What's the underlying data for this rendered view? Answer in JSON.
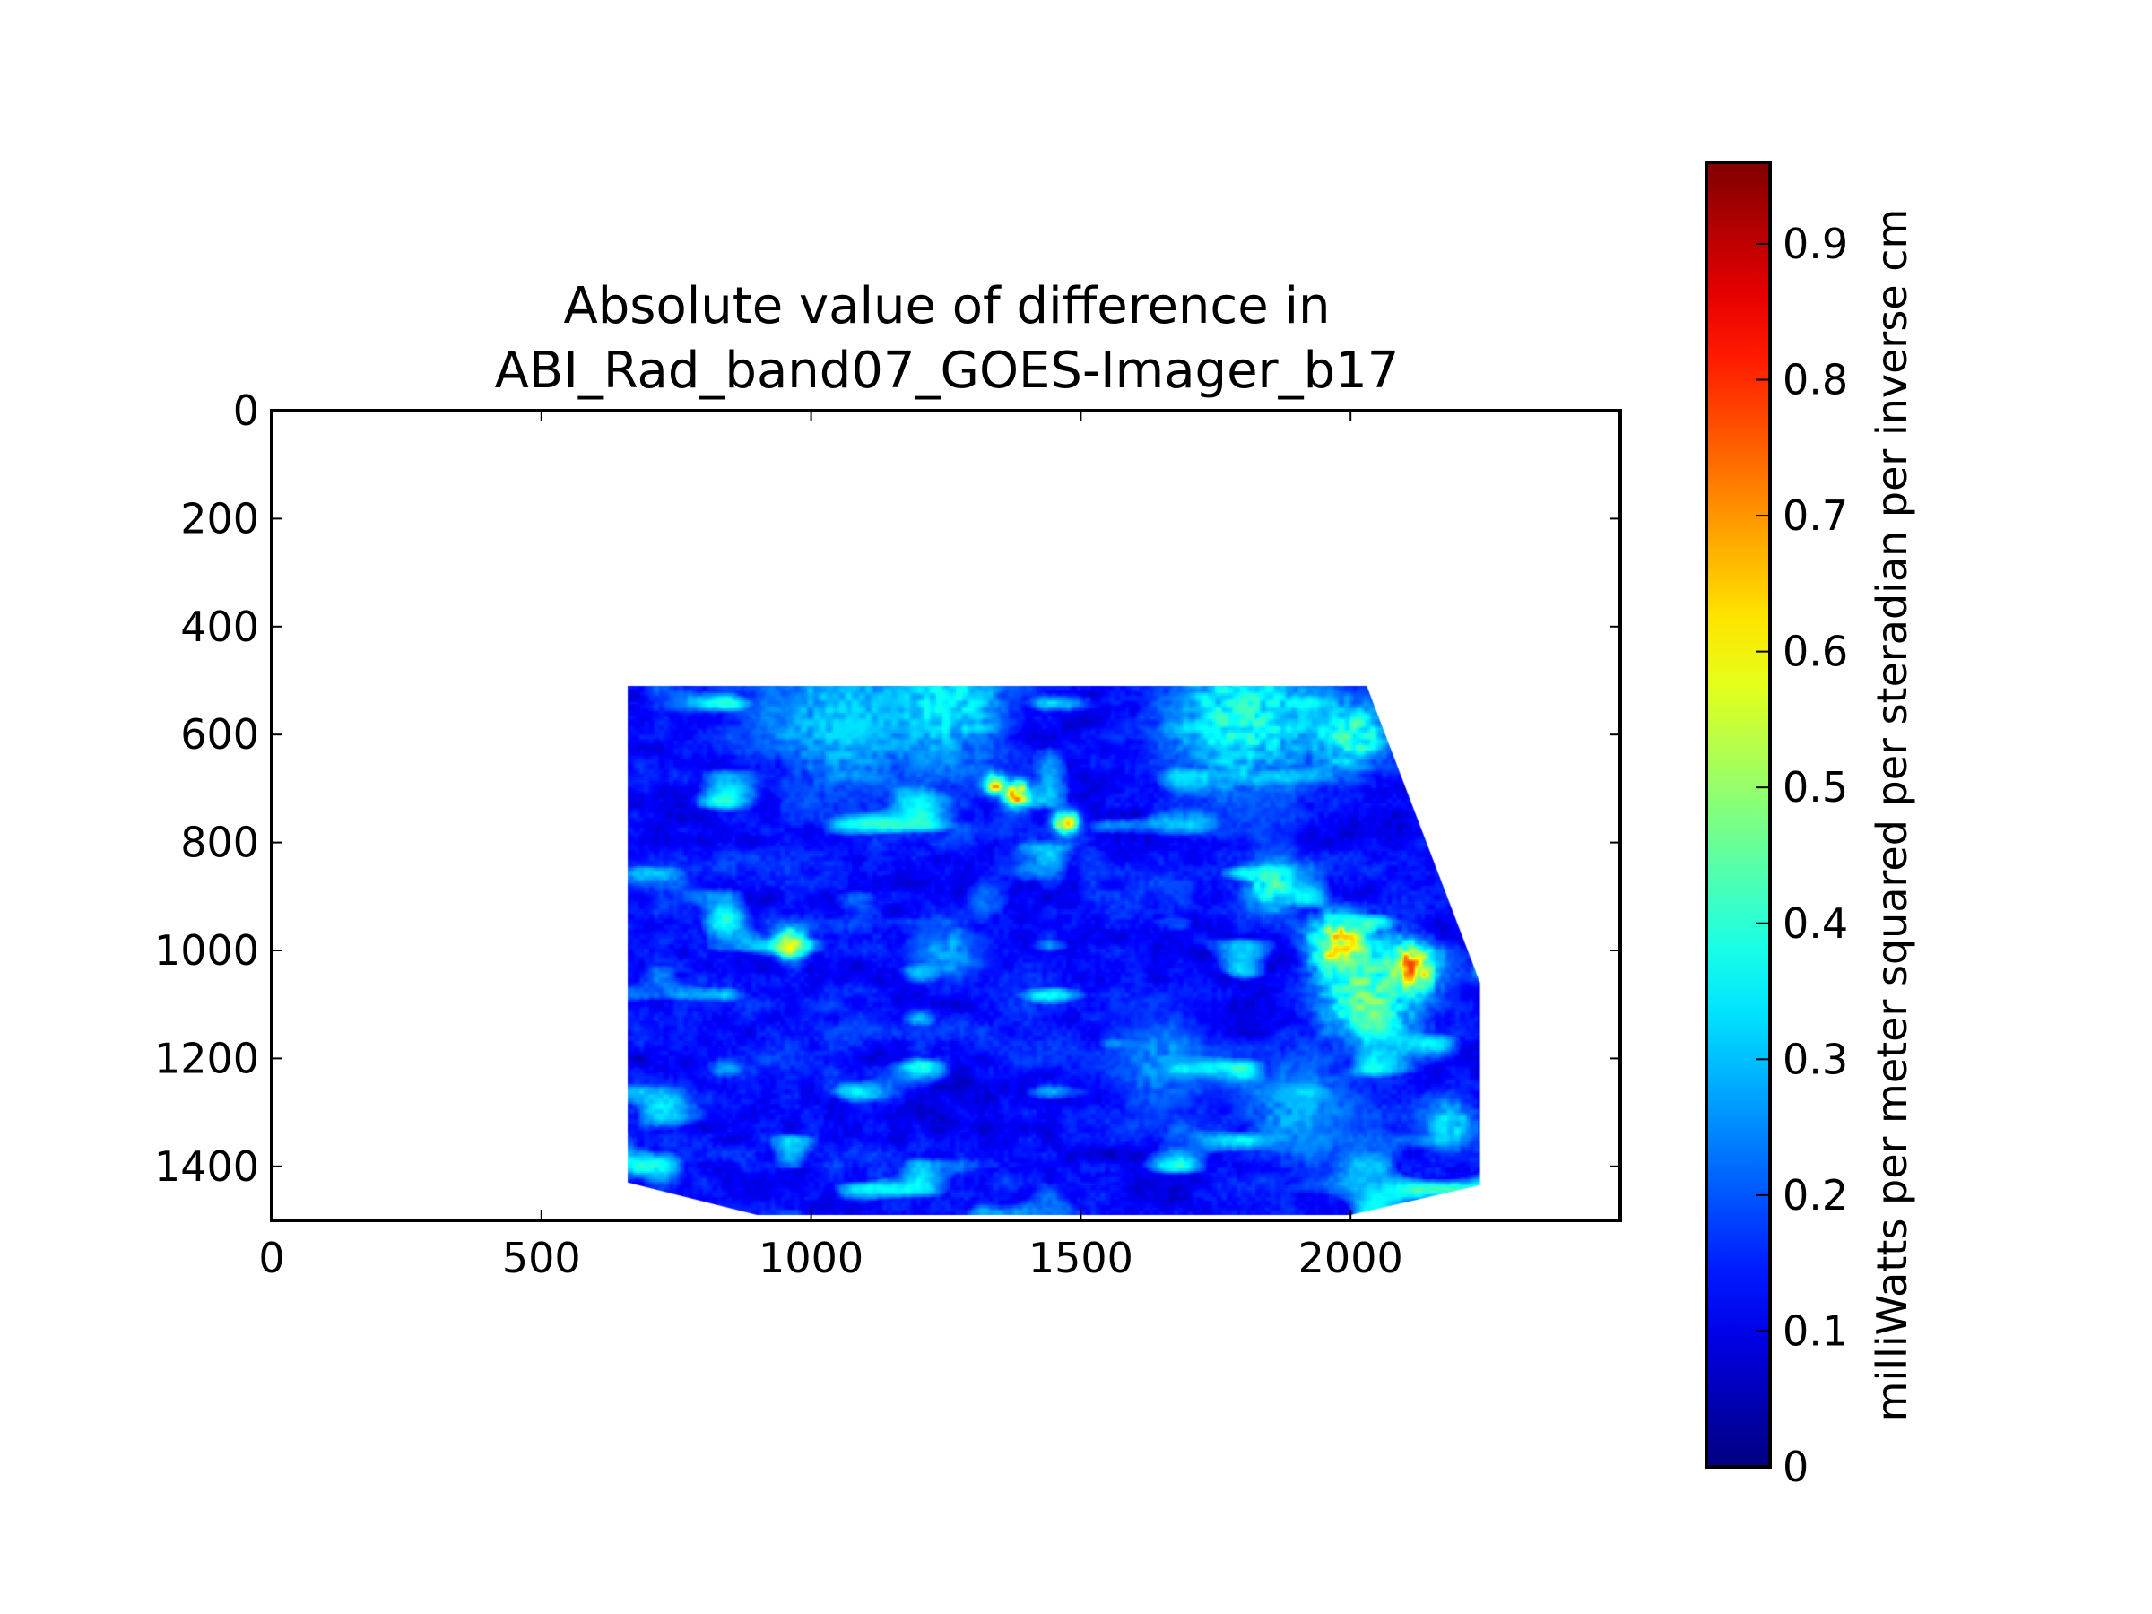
{
  "chart_data": {
    "type": "heatmap",
    "title_lines": [
      "Absolute value of difference in",
      "ABI_Rad_band07_GOES-Imager_b17"
    ],
    "xlabel": "",
    "ylabel": "",
    "xlim": [
      0,
      2500
    ],
    "ylim": [
      1500,
      0
    ],
    "xticks": [
      0,
      500,
      1000,
      1500,
      2000
    ],
    "yticks": [
      0,
      200,
      400,
      600,
      800,
      1000,
      1200,
      1400
    ],
    "grid": false,
    "colormap": "jet",
    "colorbar": {
      "vmin": 0,
      "vmax": 0.96,
      "ticks": [
        "0",
        "0.1",
        "0.2",
        "0.3",
        "0.4",
        "0.5",
        "0.6",
        "0.7",
        "0.8",
        "0.9"
      ],
      "label": "milliWatts per meter squared per steradian per inverse cm",
      "placement": "right"
    },
    "data_extent_polygon": [
      [
        660,
        510
      ],
      [
        2030,
        510
      ],
      [
        2240,
        1060
      ],
      [
        2240,
        1435
      ],
      [
        2000,
        1490
      ],
      [
        900,
        1490
      ],
      [
        660,
        1430
      ]
    ],
    "background_level": 0.13,
    "features": [
      {
        "x": 1050,
        "y": 570,
        "value": 0.33,
        "radius": 140
      },
      {
        "x": 1250,
        "y": 540,
        "value": 0.38,
        "radius": 110
      },
      {
        "x": 1800,
        "y": 560,
        "value": 0.42,
        "radius": 140
      },
      {
        "x": 2000,
        "y": 600,
        "value": 0.45,
        "radius": 70
      },
      {
        "x": 1380,
        "y": 710,
        "value": 0.78,
        "radius": 25
      },
      {
        "x": 1470,
        "y": 760,
        "value": 0.72,
        "radius": 22
      },
      {
        "x": 1340,
        "y": 690,
        "value": 0.7,
        "radius": 18
      },
      {
        "x": 960,
        "y": 985,
        "value": 0.62,
        "radius": 30
      },
      {
        "x": 1980,
        "y": 990,
        "value": 0.72,
        "radius": 55
      },
      {
        "x": 2110,
        "y": 1030,
        "value": 0.78,
        "radius": 45
      },
      {
        "x": 2030,
        "y": 1080,
        "value": 0.5,
        "radius": 90
      },
      {
        "x": 1250,
        "y": 1000,
        "value": 0.3,
        "radius": 60
      },
      {
        "x": 1650,
        "y": 1200,
        "value": 0.28,
        "radius": 90
      },
      {
        "x": 1900,
        "y": 1300,
        "value": 0.3,
        "radius": 100
      },
      {
        "x": 2180,
        "y": 1320,
        "value": 0.35,
        "radius": 50
      },
      {
        "x": 1850,
        "y": 880,
        "value": 0.45,
        "radius": 50
      }
    ]
  }
}
